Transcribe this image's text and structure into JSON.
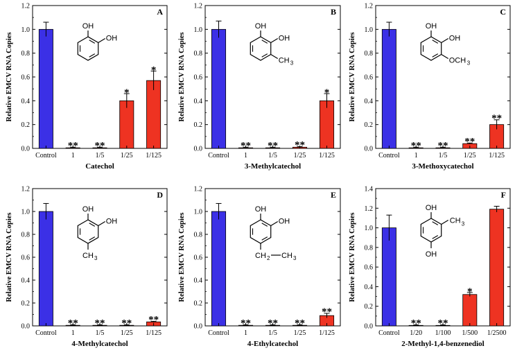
{
  "figure": {
    "colors": {
      "control": "#3b30e6",
      "treatment": "#ee3322",
      "axis": "#000000"
    }
  },
  "chart_data": [
    {
      "type": "bar",
      "id": "A",
      "letter": "A",
      "title": "",
      "xlabel": "Catechol",
      "ylabel": "Relative EMCV RNA Copies",
      "ylim": [
        0,
        1.2
      ],
      "yticks": [
        "0.0",
        "0.2",
        "0.4",
        "0.6",
        "0.8",
        "1.0",
        "1.2"
      ],
      "categories": [
        "Control",
        "1",
        "1/5",
        "1/25",
        "1/125"
      ],
      "values": [
        1.0,
        0.005,
        0.005,
        0.4,
        0.57
      ],
      "errors": [
        0.06,
        0.005,
        0.005,
        0.06,
        0.08
      ],
      "significance": [
        "",
        "**",
        "**",
        "*",
        "*"
      ],
      "structure": "catechol",
      "structure_labels": {
        "oh1": "OH",
        "oh2": "OH"
      }
    },
    {
      "type": "bar",
      "id": "B",
      "letter": "B",
      "title": "",
      "xlabel": "3-Methylcatechol",
      "ylabel": "Relative EMCV RNA Copies",
      "ylim": [
        0,
        1.2
      ],
      "yticks": [
        "0.0",
        "0.2",
        "0.4",
        "0.6",
        "0.8",
        "1.0",
        "1.2"
      ],
      "categories": [
        "Control",
        "1",
        "1/5",
        "1/25",
        "1/125"
      ],
      "values": [
        1.0,
        0.005,
        0.005,
        0.01,
        0.4
      ],
      "errors": [
        0.07,
        0.005,
        0.005,
        0.005,
        0.06
      ],
      "significance": [
        "",
        "**",
        "**",
        "**",
        "*"
      ],
      "structure": "3-methylcatechol",
      "structure_labels": {
        "oh1": "OH",
        "oh2": "OH",
        "sub": "CH",
        "sub_index": "3"
      }
    },
    {
      "type": "bar",
      "id": "C",
      "letter": "C",
      "title": "",
      "xlabel": "3-Methoxycatechol",
      "ylabel": "Relative EMCV RNA Copies",
      "ylim": [
        0,
        1.2
      ],
      "yticks": [
        "0.0",
        "0.2",
        "0.4",
        "0.6",
        "0.8",
        "1.0",
        "1.2"
      ],
      "categories": [
        "Control",
        "1",
        "1/5",
        "1/25",
        "1/125"
      ],
      "values": [
        1.0,
        0.005,
        0.005,
        0.04,
        0.2
      ],
      "errors": [
        0.06,
        0.005,
        0.005,
        0.005,
        0.04
      ],
      "significance": [
        "",
        "**",
        "**",
        "**",
        "**"
      ],
      "structure": "3-methoxycatechol",
      "structure_labels": {
        "oh1": "OH",
        "oh2": "OH",
        "sub": "OCH",
        "sub_index": "3"
      }
    },
    {
      "type": "bar",
      "id": "D",
      "letter": "D",
      "title": "",
      "xlabel": "4-Methylcatechol",
      "ylabel": "Relative EMCV RNA Copies",
      "ylim": [
        0,
        1.2
      ],
      "yticks": [
        "0.0",
        "0.2",
        "0.4",
        "0.6",
        "0.8",
        "1.0",
        "1.2"
      ],
      "categories": [
        "Control",
        "1",
        "1/5",
        "1/25",
        "1/125"
      ],
      "values": [
        1.0,
        0.005,
        0.005,
        0.005,
        0.035
      ],
      "errors": [
        0.07,
        0.005,
        0.005,
        0.005,
        0.005
      ],
      "significance": [
        "",
        "**",
        "**",
        "**",
        "**"
      ],
      "structure": "4-methylcatechol",
      "structure_labels": {
        "oh1": "OH",
        "oh2": "OH",
        "sub": "CH",
        "sub_index": "3"
      }
    },
    {
      "type": "bar",
      "id": "E",
      "letter": "E",
      "title": "",
      "xlabel": "4-Ethylcatechol",
      "ylabel": "Relative EMCV RNA Copies",
      "ylim": [
        0,
        1.2
      ],
      "yticks": [
        "0.0",
        "0.2",
        "0.4",
        "0.6",
        "0.8",
        "1.0",
        "1.2"
      ],
      "categories": [
        "Control",
        "1",
        "1/5",
        "1/25",
        "1/125"
      ],
      "values": [
        1.0,
        0.005,
        0.005,
        0.005,
        0.09
      ],
      "errors": [
        0.07,
        0.005,
        0.005,
        0.005,
        0.02
      ],
      "significance": [
        "",
        "**",
        "**",
        "**",
        "**"
      ],
      "structure": "4-ethylcatechol",
      "structure_labels": {
        "oh1": "OH",
        "oh2": "OH",
        "sub": "CH",
        "sub_index": "2",
        "sub2": "CH",
        "sub2_index": "3"
      }
    },
    {
      "type": "bar",
      "id": "F",
      "letter": "F",
      "title": "",
      "xlabel": "2-Methyl-1,4-benzenediol",
      "ylabel": "Relative EMCV RNA Copies",
      "ylim": [
        0,
        1.4
      ],
      "yticks": [
        "0.0",
        "0.2",
        "0.4",
        "0.6",
        "0.8",
        "1.0",
        "1.2",
        "1.4"
      ],
      "categories": [
        "Control",
        "1/20",
        "1/100",
        "1/500",
        "1/2500"
      ],
      "values": [
        1.0,
        0.005,
        0.005,
        0.32,
        1.19
      ],
      "errors": [
        0.13,
        0.005,
        0.005,
        0.02,
        0.03
      ],
      "significance": [
        "",
        "**",
        "**",
        "*",
        ""
      ],
      "structure": "methylhydroquinone",
      "structure_labels": {
        "oh1": "OH",
        "oh2": "OH",
        "sub": "CH",
        "sub_index": "3"
      }
    }
  ]
}
